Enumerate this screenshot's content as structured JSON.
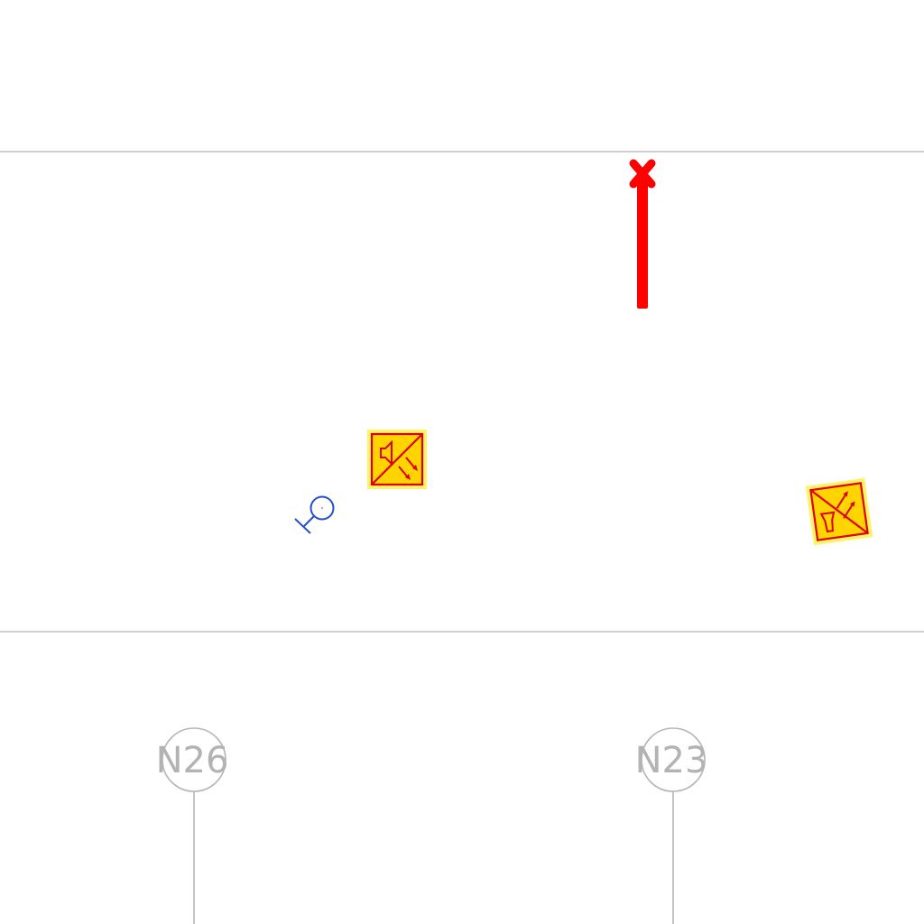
{
  "drawing": {
    "background_color": "#ffffff",
    "boundary_line_color": "#b5b5b5",
    "grid_bubbles": [
      {
        "label": "N26"
      },
      {
        "label": "N23"
      }
    ],
    "symbols": {
      "red_marker_color": "#ff0000",
      "warning_sign_fill": "#ffd400",
      "warning_sign_halo": "#fff36a",
      "warning_sign_stroke": "#e00000",
      "device_symbol_color": "#2350c8",
      "icons": [
        "red-cross-terminal-icon",
        "speaker-exit-sign-icon",
        "horn-exit-sign-icon",
        "blue-device-symbol-icon"
      ]
    }
  }
}
